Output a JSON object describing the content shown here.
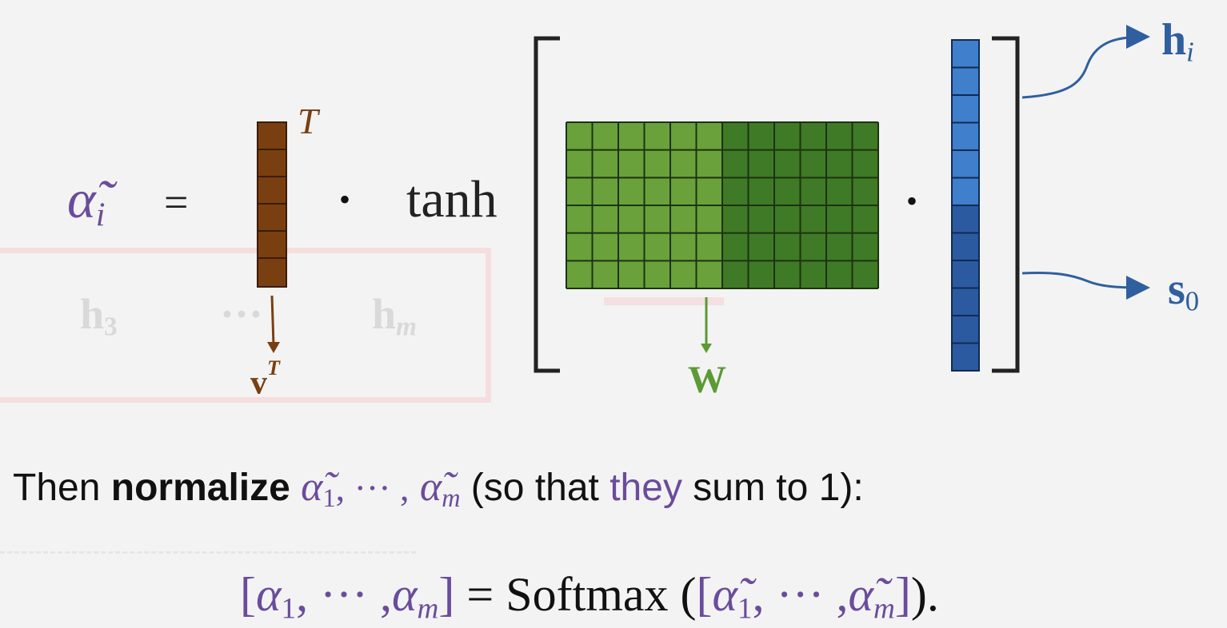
{
  "equation": {
    "lhs_symbol": "α̃",
    "lhs_index": "i",
    "equals": "=",
    "transpose_mark": "T",
    "dot1": "•",
    "tanh": "tanh",
    "dot2": "•"
  },
  "labels": {
    "v": "v",
    "v_sup": "T",
    "w": "W",
    "h": "h",
    "h_sub": "i",
    "s": "s",
    "s_sub": "0"
  },
  "ghost": {
    "h3": "h",
    "h3_sub": "3",
    "dots": "···",
    "hm": "h",
    "hm_sub": "m"
  },
  "text_line": {
    "then": "Then ",
    "normalize": "normalize",
    "alpha1": "α̃",
    "alpha1_sub": "1",
    "mid_dots": ", ··· ,",
    "alpham": "α̃",
    "alpham_sub": "m",
    "paren_open": " (so that ",
    "they": "they",
    "paren_close": " sum to 1):"
  },
  "softmax_line": {
    "bracket_open": "[",
    "a1": "α",
    "a1_sub": "1",
    "dots1": ", ··· ,",
    "am": "α",
    "am_sub": "m",
    "bracket_close": "]",
    "equals_softmax": " = Softmax (",
    "inner_open": "[",
    "t1": "α̃",
    "t1_sub": "1",
    "dots2": ", ··· ,",
    "tm": "α̃",
    "tm_sub": "m",
    "inner_close": "]",
    "end": ")."
  },
  "colors": {
    "brown": "#7a3f10",
    "green_light": "#6aa13a",
    "green_dark": "#3f7a26",
    "blue_light": "#3f7fcb",
    "blue_dark": "#2c5aa0",
    "purple": "#6a4c9c"
  }
}
